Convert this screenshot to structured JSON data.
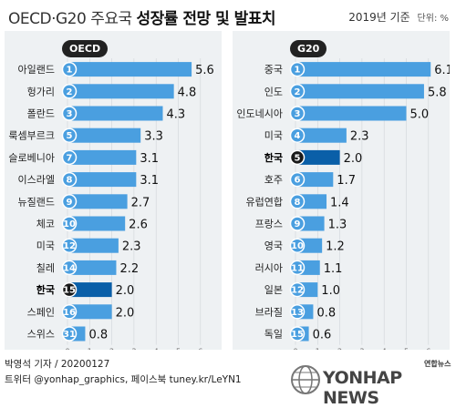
{
  "header": {
    "title_light": "OECD·G20 주요국",
    "title_bold": "성장률 전망 및 발표치",
    "year": "2019년 기준",
    "unit": "단위: %"
  },
  "colors": {
    "bar": "#4a9fe0",
    "bar_highlight": "#0a5fa8",
    "rank_circle": "#4a9fe0",
    "rank_circle_highlight": "#1a1a1a",
    "panel_bg": "#eef1f3"
  },
  "chart_data": [
    {
      "type": "bar",
      "orientation": "horizontal",
      "group_label": "OECD",
      "xlim": [
        0,
        6
      ],
      "ticks": [
        0,
        1,
        2,
        3,
        4,
        5,
        6
      ],
      "highlight": "한국",
      "categories": [
        "아일랜드",
        "헝가리",
        "폴란드",
        "룩셈부르크",
        "슬로베니아",
        "이스라엘",
        "뉴질랜드",
        "체코",
        "미국",
        "칠레",
        "한국",
        "스페인",
        "스위스"
      ],
      "ranks": [
        "1",
        "2",
        "3",
        "5",
        "7",
        "8",
        "9",
        "10",
        "12",
        "14",
        "15",
        "16",
        "31"
      ],
      "values": [
        5.6,
        4.8,
        4.3,
        3.3,
        3.1,
        3.1,
        2.7,
        2.6,
        2.3,
        2.2,
        2.0,
        2.0,
        0.8
      ],
      "value_labels": [
        "5.6",
        "4.8",
        "4.3",
        "3.3",
        "3.1",
        "3.1",
        "2.7",
        "2.6",
        "2.3",
        "2.2",
        "2.0",
        "2.0",
        "0.8"
      ]
    },
    {
      "type": "bar",
      "orientation": "horizontal",
      "group_label": "G20",
      "xlim": [
        0,
        6
      ],
      "ticks": [
        0,
        1,
        2,
        3,
        4,
        5,
        6
      ],
      "highlight": "한국",
      "categories": [
        "중국",
        "인도",
        "인도네시아",
        "미국",
        "한국",
        "호주",
        "유럽연합",
        "프랑스",
        "영국",
        "러시아",
        "일본",
        "브라질",
        "독일"
      ],
      "ranks": [
        "1",
        "2",
        "3",
        "4",
        "5",
        "6",
        "8",
        "9",
        "10",
        "11",
        "12",
        "13",
        "15"
      ],
      "values": [
        6.1,
        5.8,
        5.0,
        2.3,
        2.0,
        1.7,
        1.4,
        1.3,
        1.2,
        1.1,
        1.0,
        0.8,
        0.6
      ],
      "value_labels": [
        "6.1",
        "5.8",
        "5.0",
        "2.3",
        "2.0",
        "1.7",
        "1.4",
        "1.3",
        "1.2",
        "1.1",
        "1.0",
        "0.8",
        "0.6"
      ]
    }
  ],
  "footer": {
    "line1": "박영석 기자 / 20200127",
    "line2": "트위터 @yonhap_graphics, 페이스북 tuney.kr/LeYN1"
  },
  "logo": {
    "text": "YONHAP NEWS",
    "small": "연합뉴스"
  }
}
